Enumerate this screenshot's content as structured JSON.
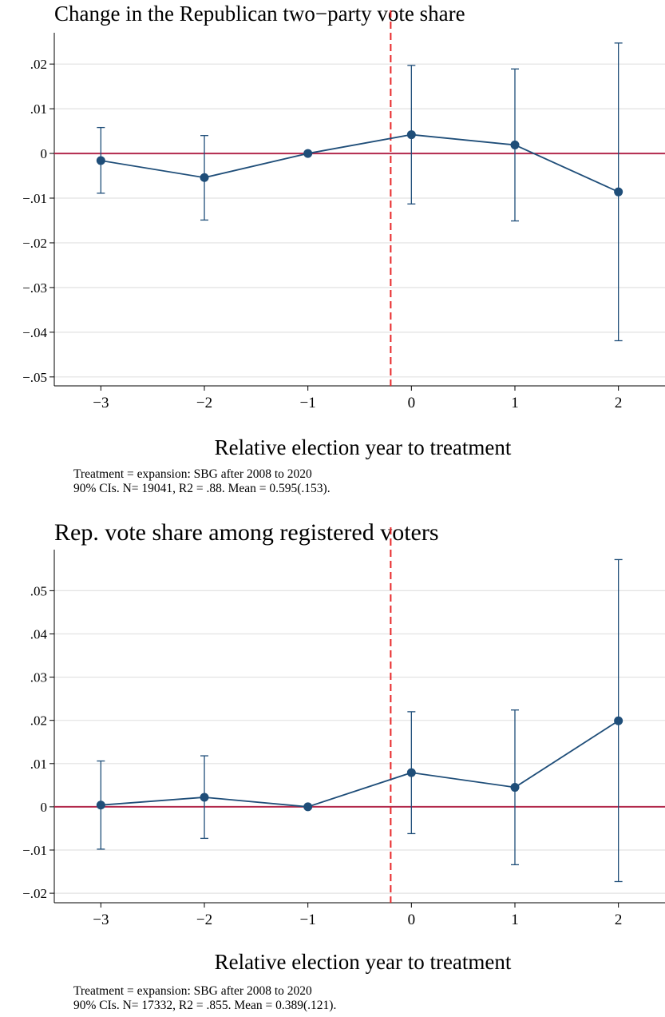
{
  "colors": {
    "series": "#1f4e79",
    "zero_line": "#b22a4d",
    "treatment_line": "#e8282a",
    "grid": "#e2e2e2",
    "axis": "#000000"
  },
  "chart_data": [
    {
      "type": "line",
      "title": "Change in the Republican two−party vote share",
      "xlabel": "Relative election year to treatment",
      "ylabel": "",
      "x": [
        -3,
        -2,
        -1,
        0,
        1,
        2
      ],
      "x_tick_labels": [
        "−3",
        "−2",
        "−1",
        "0",
        "1",
        "2"
      ],
      "xlim": [
        -3.45,
        2.45
      ],
      "ylim": [
        -0.052,
        0.027
      ],
      "y_ticks": [
        0.02,
        0.01,
        0,
        -0.01,
        -0.02,
        -0.03,
        -0.04,
        -0.05
      ],
      "y_tick_labels": [
        ".02",
        ".01",
        "0",
        "−.01",
        "−.02",
        "−.03",
        "−.04",
        "−.05"
      ],
      "grid": true,
      "treatment_line_x": -0.2,
      "series": [
        {
          "values": [
            -0.0016,
            -0.0054,
            0.0,
            0.0042,
            0.0019,
            -0.0086
          ],
          "ci_low": [
            -0.0089,
            -0.0149,
            0.0,
            -0.0113,
            -0.0151,
            -0.0419
          ],
          "ci_high": [
            0.0058,
            0.004,
            0.0,
            0.0197,
            0.0189,
            0.0247
          ]
        }
      ],
      "notes": [
        "Treatment = expansion: SBG after 2008 to 2020",
        "90% CIs. N= 19041, R2 = .88. Mean = 0.595(.153)."
      ]
    },
    {
      "type": "line",
      "title": "Rep. vote share among registered voters",
      "xlabel": "Relative election year to treatment",
      "ylabel": "",
      "x": [
        -3,
        -2,
        -1,
        0,
        1,
        2
      ],
      "x_tick_labels": [
        "−3",
        "−2",
        "−1",
        "0",
        "1",
        "2"
      ],
      "xlim": [
        -3.45,
        2.45
      ],
      "ylim": [
        -0.0222,
        0.0595
      ],
      "y_ticks": [
        0.05,
        0.04,
        0.03,
        0.02,
        0.01,
        0,
        -0.01,
        -0.02
      ],
      "y_tick_labels": [
        ".05",
        ".04",
        ".03",
        ".02",
        ".01",
        "0",
        "−.01",
        "−.02"
      ],
      "grid": true,
      "treatment_line_x": -0.2,
      "series": [
        {
          "values": [
            0.0004,
            0.0022,
            0.0,
            0.0079,
            0.0045,
            0.0199
          ],
          "ci_low": [
            -0.0098,
            -0.0073,
            0.0,
            -0.0062,
            -0.0134,
            -0.0173
          ],
          "ci_high": [
            0.0106,
            0.0118,
            0.0,
            0.022,
            0.0224,
            0.0572
          ]
        }
      ],
      "notes": [
        "Treatment = expansion: SBG after 2008 to 2020",
        "90% CIs. N= 17332, R2 = .855. Mean = 0.389(.121)."
      ]
    }
  ]
}
